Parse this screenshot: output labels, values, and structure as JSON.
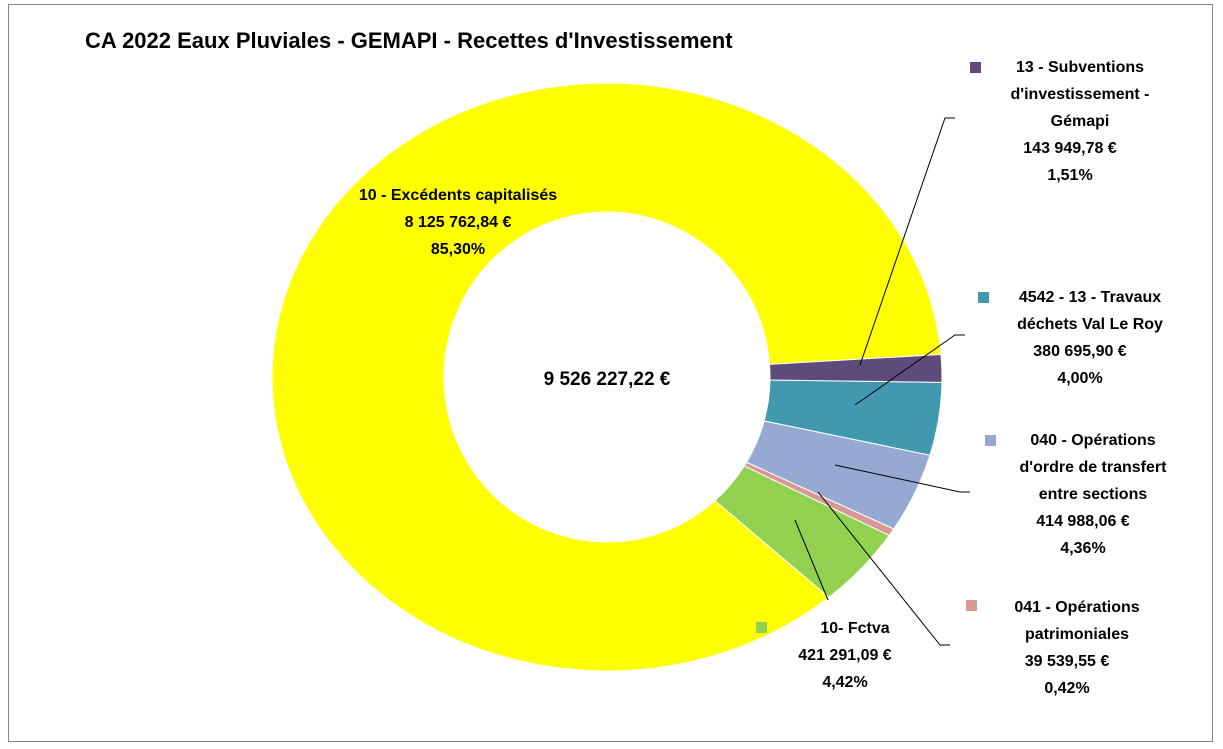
{
  "chart_data": {
    "type": "donut",
    "title": "CA 2022 Eaux Pluviales - GEMAPI - Recettes d'Investissement",
    "total_label": "9 526 227,22 €",
    "categories": [
      "13 - Subventions d'investissement - Gémapi",
      "4542 - 13 - Travaux déchets Val Le Roy",
      "040 - Opérations d'ordre de transfert entre sections",
      "041 - Opérations patrimoniales",
      "10- Fctva",
      "10 - Excédents capitalisés"
    ],
    "values": [
      143949.78,
      380695.9,
      414988.06,
      39539.55,
      421291.09,
      8125762.84
    ],
    "value_labels": [
      "143 949,78 €",
      "380 695,90 €",
      "414 988,06 €",
      "39 539,55 €",
      "421 291,09 €",
      "8 125 762,84 €"
    ],
    "percent_labels": [
      "1,51%",
      "4,00%",
      "4,36%",
      "0,42%",
      "4,42%",
      "85,30%"
    ],
    "colors": [
      "#5f4b7b",
      "#4199b0",
      "#95a9d3",
      "#d99795",
      "#92d050",
      "#ffff00"
    ]
  }
}
